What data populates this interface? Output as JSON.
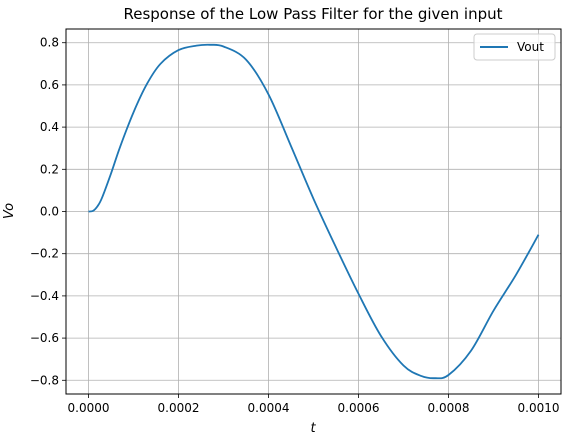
{
  "chart_data": {
    "type": "line",
    "title": "Response of the Low Pass Filter for the given input",
    "xlabel": "t",
    "ylabel": "Vo",
    "xlim": [
      -5e-05,
      0.00105
    ],
    "ylim": [
      -0.865,
      0.865
    ],
    "xticks": [
      0.0,
      0.0002,
      0.0004,
      0.0006,
      0.0008,
      0.001
    ],
    "xtick_labels": [
      "0.0000",
      "0.0002",
      "0.0004",
      "0.0006",
      "0.0008",
      "0.0010"
    ],
    "yticks": [
      -0.8,
      -0.6,
      -0.4,
      -0.2,
      0.0,
      0.2,
      0.4,
      0.6,
      0.8
    ],
    "ytick_labels": [
      "−0.8",
      "−0.6",
      "−0.4",
      "−0.2",
      "0.0",
      "0.2",
      "0.4",
      "0.6",
      "0.8"
    ],
    "grid": true,
    "legend_position": "top-right",
    "series": [
      {
        "name": "Vout",
        "color": "#1f77b4",
        "x": [
          0.0,
          1e-05,
          2e-05,
          3e-05,
          5e-05,
          7e-05,
          0.0001,
          0.00013,
          0.00016,
          0.0002,
          0.00024,
          0.00027,
          0.0003,
          0.00035,
          0.0004,
          0.00045,
          0.0005,
          0.00055,
          0.0006,
          0.00065,
          0.0007,
          0.00074,
          0.00077,
          0.0008,
          0.00085,
          0.0009,
          0.00095,
          0.001
        ],
        "y": [
          0.0,
          0.003,
          0.025,
          0.065,
          0.18,
          0.305,
          0.47,
          0.605,
          0.7,
          0.765,
          0.786,
          0.79,
          0.782,
          0.72,
          0.555,
          0.31,
          0.06,
          -0.17,
          -0.39,
          -0.59,
          -0.73,
          -0.78,
          -0.79,
          -0.775,
          -0.66,
          -0.47,
          -0.3,
          -0.11
        ]
      }
    ]
  }
}
